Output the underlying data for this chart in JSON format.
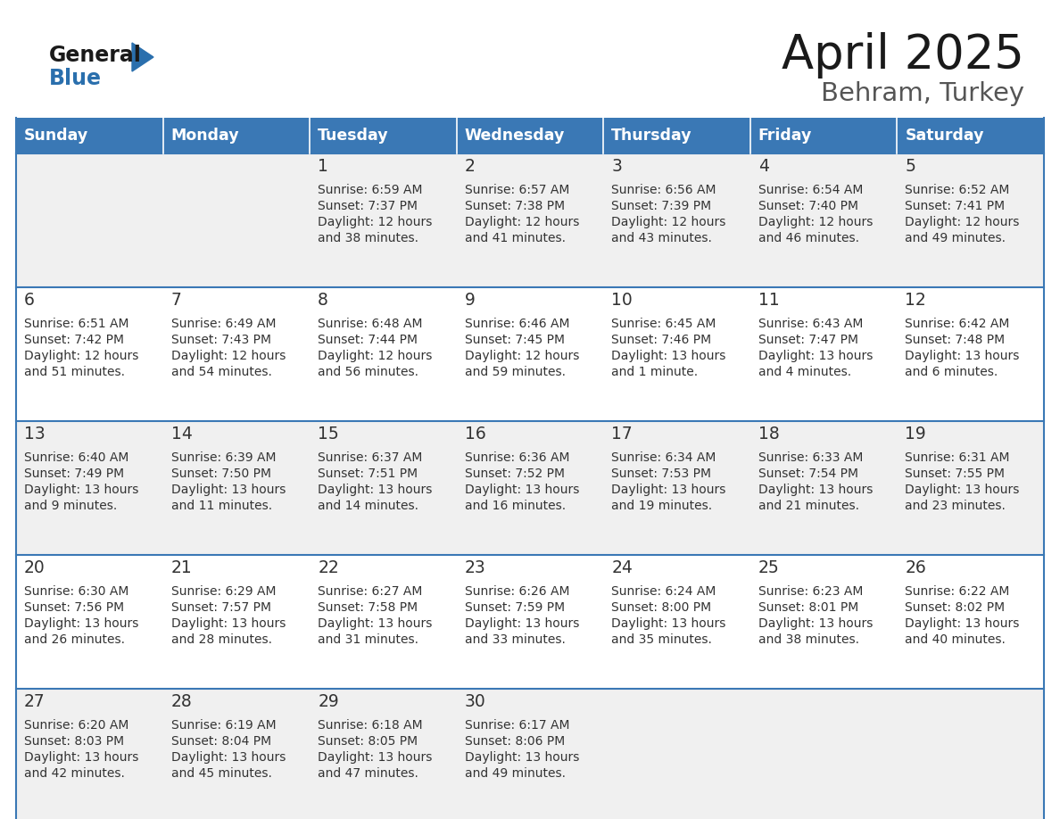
{
  "title": "April 2025",
  "subtitle": "Behram, Turkey",
  "header_bg": "#3a78b5",
  "header_text_color": "#ffffff",
  "cell_bg_odd": "#f0f0f0",
  "cell_bg_even": "#ffffff",
  "row_border_color": "#3a78b5",
  "text_color": "#333333",
  "logo_text_color": "#1a1a1a",
  "logo_blue_color": "#2a6fad",
  "days_of_week": [
    "Sunday",
    "Monday",
    "Tuesday",
    "Wednesday",
    "Thursday",
    "Friday",
    "Saturday"
  ],
  "weeks": [
    [
      {
        "day": "",
        "sunrise": "",
        "sunset": "",
        "daylight": ""
      },
      {
        "day": "",
        "sunrise": "",
        "sunset": "",
        "daylight": ""
      },
      {
        "day": "1",
        "sunrise": "Sunrise: 6:59 AM",
        "sunset": "Sunset: 7:37 PM",
        "daylight": "Daylight: 12 hours\nand 38 minutes."
      },
      {
        "day": "2",
        "sunrise": "Sunrise: 6:57 AM",
        "sunset": "Sunset: 7:38 PM",
        "daylight": "Daylight: 12 hours\nand 41 minutes."
      },
      {
        "day": "3",
        "sunrise": "Sunrise: 6:56 AM",
        "sunset": "Sunset: 7:39 PM",
        "daylight": "Daylight: 12 hours\nand 43 minutes."
      },
      {
        "day": "4",
        "sunrise": "Sunrise: 6:54 AM",
        "sunset": "Sunset: 7:40 PM",
        "daylight": "Daylight: 12 hours\nand 46 minutes."
      },
      {
        "day": "5",
        "sunrise": "Sunrise: 6:52 AM",
        "sunset": "Sunset: 7:41 PM",
        "daylight": "Daylight: 12 hours\nand 49 minutes."
      }
    ],
    [
      {
        "day": "6",
        "sunrise": "Sunrise: 6:51 AM",
        "sunset": "Sunset: 7:42 PM",
        "daylight": "Daylight: 12 hours\nand 51 minutes."
      },
      {
        "day": "7",
        "sunrise": "Sunrise: 6:49 AM",
        "sunset": "Sunset: 7:43 PM",
        "daylight": "Daylight: 12 hours\nand 54 minutes."
      },
      {
        "day": "8",
        "sunrise": "Sunrise: 6:48 AM",
        "sunset": "Sunset: 7:44 PM",
        "daylight": "Daylight: 12 hours\nand 56 minutes."
      },
      {
        "day": "9",
        "sunrise": "Sunrise: 6:46 AM",
        "sunset": "Sunset: 7:45 PM",
        "daylight": "Daylight: 12 hours\nand 59 minutes."
      },
      {
        "day": "10",
        "sunrise": "Sunrise: 6:45 AM",
        "sunset": "Sunset: 7:46 PM",
        "daylight": "Daylight: 13 hours\nand 1 minute."
      },
      {
        "day": "11",
        "sunrise": "Sunrise: 6:43 AM",
        "sunset": "Sunset: 7:47 PM",
        "daylight": "Daylight: 13 hours\nand 4 minutes."
      },
      {
        "day": "12",
        "sunrise": "Sunrise: 6:42 AM",
        "sunset": "Sunset: 7:48 PM",
        "daylight": "Daylight: 13 hours\nand 6 minutes."
      }
    ],
    [
      {
        "day": "13",
        "sunrise": "Sunrise: 6:40 AM",
        "sunset": "Sunset: 7:49 PM",
        "daylight": "Daylight: 13 hours\nand 9 minutes."
      },
      {
        "day": "14",
        "sunrise": "Sunrise: 6:39 AM",
        "sunset": "Sunset: 7:50 PM",
        "daylight": "Daylight: 13 hours\nand 11 minutes."
      },
      {
        "day": "15",
        "sunrise": "Sunrise: 6:37 AM",
        "sunset": "Sunset: 7:51 PM",
        "daylight": "Daylight: 13 hours\nand 14 minutes."
      },
      {
        "day": "16",
        "sunrise": "Sunrise: 6:36 AM",
        "sunset": "Sunset: 7:52 PM",
        "daylight": "Daylight: 13 hours\nand 16 minutes."
      },
      {
        "day": "17",
        "sunrise": "Sunrise: 6:34 AM",
        "sunset": "Sunset: 7:53 PM",
        "daylight": "Daylight: 13 hours\nand 19 minutes."
      },
      {
        "day": "18",
        "sunrise": "Sunrise: 6:33 AM",
        "sunset": "Sunset: 7:54 PM",
        "daylight": "Daylight: 13 hours\nand 21 minutes."
      },
      {
        "day": "19",
        "sunrise": "Sunrise: 6:31 AM",
        "sunset": "Sunset: 7:55 PM",
        "daylight": "Daylight: 13 hours\nand 23 minutes."
      }
    ],
    [
      {
        "day": "20",
        "sunrise": "Sunrise: 6:30 AM",
        "sunset": "Sunset: 7:56 PM",
        "daylight": "Daylight: 13 hours\nand 26 minutes."
      },
      {
        "day": "21",
        "sunrise": "Sunrise: 6:29 AM",
        "sunset": "Sunset: 7:57 PM",
        "daylight": "Daylight: 13 hours\nand 28 minutes."
      },
      {
        "day": "22",
        "sunrise": "Sunrise: 6:27 AM",
        "sunset": "Sunset: 7:58 PM",
        "daylight": "Daylight: 13 hours\nand 31 minutes."
      },
      {
        "day": "23",
        "sunrise": "Sunrise: 6:26 AM",
        "sunset": "Sunset: 7:59 PM",
        "daylight": "Daylight: 13 hours\nand 33 minutes."
      },
      {
        "day": "24",
        "sunrise": "Sunrise: 6:24 AM",
        "sunset": "Sunset: 8:00 PM",
        "daylight": "Daylight: 13 hours\nand 35 minutes."
      },
      {
        "day": "25",
        "sunrise": "Sunrise: 6:23 AM",
        "sunset": "Sunset: 8:01 PM",
        "daylight": "Daylight: 13 hours\nand 38 minutes."
      },
      {
        "day": "26",
        "sunrise": "Sunrise: 6:22 AM",
        "sunset": "Sunset: 8:02 PM",
        "daylight": "Daylight: 13 hours\nand 40 minutes."
      }
    ],
    [
      {
        "day": "27",
        "sunrise": "Sunrise: 6:20 AM",
        "sunset": "Sunset: 8:03 PM",
        "daylight": "Daylight: 13 hours\nand 42 minutes."
      },
      {
        "day": "28",
        "sunrise": "Sunrise: 6:19 AM",
        "sunset": "Sunset: 8:04 PM",
        "daylight": "Daylight: 13 hours\nand 45 minutes."
      },
      {
        "day": "29",
        "sunrise": "Sunrise: 6:18 AM",
        "sunset": "Sunset: 8:05 PM",
        "daylight": "Daylight: 13 hours\nand 47 minutes."
      },
      {
        "day": "30",
        "sunrise": "Sunrise: 6:17 AM",
        "sunset": "Sunset: 8:06 PM",
        "daylight": "Daylight: 13 hours\nand 49 minutes."
      },
      {
        "day": "",
        "sunrise": "",
        "sunset": "",
        "daylight": ""
      },
      {
        "day": "",
        "sunrise": "",
        "sunset": "",
        "daylight": ""
      },
      {
        "day": "",
        "sunrise": "",
        "sunset": "",
        "daylight": ""
      }
    ]
  ]
}
